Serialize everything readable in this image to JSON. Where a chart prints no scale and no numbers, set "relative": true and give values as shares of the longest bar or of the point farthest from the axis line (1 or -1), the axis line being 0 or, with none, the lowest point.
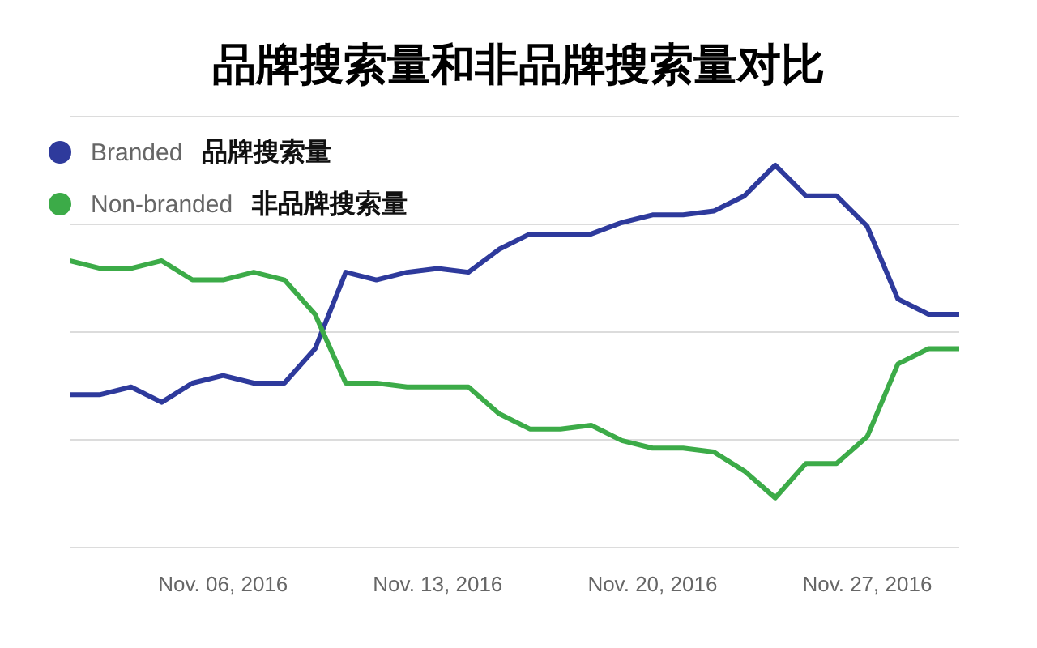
{
  "chart_data": {
    "type": "line",
    "title": "品牌搜索量和非品牌搜索量对比",
    "relative": true,
    "x": [
      "2016-11-01",
      "2016-11-02",
      "2016-11-03",
      "2016-11-04",
      "2016-11-05",
      "2016-11-06",
      "2016-11-07",
      "2016-11-08",
      "2016-11-09",
      "2016-11-10",
      "2016-11-11",
      "2016-11-12",
      "2016-11-13",
      "2016-11-14",
      "2016-11-15",
      "2016-11-16",
      "2016-11-17",
      "2016-11-18",
      "2016-11-19",
      "2016-11-20",
      "2016-11-21",
      "2016-11-22",
      "2016-11-23",
      "2016-11-24",
      "2016-11-25",
      "2016-11-26",
      "2016-11-27",
      "2016-11-28",
      "2016-11-29",
      "2016-11-30"
    ],
    "xlim": [
      "2016-11-01",
      "2016-11-30"
    ],
    "xticks": [
      {
        "value": "2016-11-06",
        "label": "Nov. 06, 2016"
      },
      {
        "value": "2016-11-13",
        "label": "Nov. 13, 2016"
      },
      {
        "value": "2016-11-20",
        "label": "Nov. 20, 2016"
      },
      {
        "value": "2016-11-27",
        "label": "Nov. 27, 2016"
      }
    ],
    "series": [
      {
        "name": "Branded",
        "color": "#2e3a9c",
        "values": [
          0.4,
          0.4,
          0.42,
          0.38,
          0.43,
          0.45,
          0.43,
          0.43,
          0.52,
          0.72,
          0.7,
          0.72,
          0.73,
          0.72,
          0.78,
          0.82,
          0.82,
          0.82,
          0.85,
          0.87,
          0.87,
          0.88,
          0.92,
          1,
          0.92,
          0.92,
          0.84,
          0.65,
          0.61,
          0.61
        ]
      },
      {
        "name": "Non-branded",
        "color": "#3cab48",
        "values": [
          0.75,
          0.73,
          0.73,
          0.75,
          0.7,
          0.7,
          0.72,
          0.7,
          0.61,
          0.43,
          0.43,
          0.42,
          0.42,
          0.42,
          0.35,
          0.31,
          0.31,
          0.32,
          0.28,
          0.26,
          0.26,
          0.25,
          0.2,
          0.13,
          0.22,
          0.22,
          0.29,
          0.48,
          0.52,
          0.52
        ]
      }
    ],
    "annotations": [
      "品牌搜索量",
      "非品牌搜索量"
    ],
    "grid": "y",
    "legend": "top left",
    "marker": "none",
    "line_style": "solid"
  }
}
